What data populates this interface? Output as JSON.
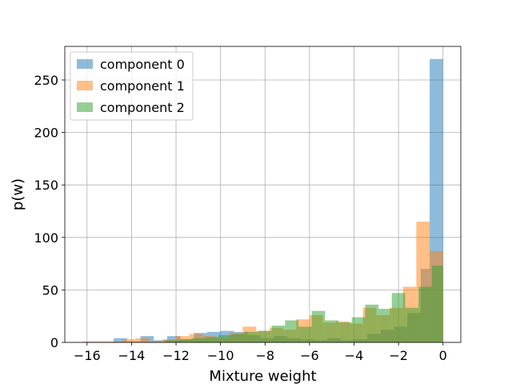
{
  "chart_data": {
    "type": "histogram",
    "xlabel": "Mixture weight",
    "ylabel": "p(w)",
    "xlim": [
      -17,
      0.8
    ],
    "ylim": [
      0,
      282
    ],
    "xticks": [
      -16,
      -14,
      -12,
      -10,
      -8,
      -6,
      -4,
      -2,
      0
    ],
    "xtick_labels": [
      "−16",
      "−14",
      "−12",
      "−10",
      "−8",
      "−6",
      "−4",
      "−2",
      "0"
    ],
    "yticks": [
      0,
      50,
      100,
      150,
      200,
      250
    ],
    "ytick_labels": [
      "0",
      "50",
      "100",
      "150",
      "200",
      "250"
    ],
    "grid": true,
    "legend_position": "top-left",
    "alpha": 0.5,
    "series": [
      {
        "name": "component 0",
        "color": "#1f77b4",
        "bin_edges": [
          -16.0,
          -15.4,
          -14.8,
          -14.2,
          -13.6,
          -13.0,
          -12.4,
          -11.8,
          -11.2,
          -10.6,
          -10.0,
          -9.4,
          -8.8,
          -8.2,
          -7.6,
          -7.0,
          -6.4,
          -5.8,
          -5.2,
          -4.6,
          -4.0,
          -3.4,
          -2.8,
          -2.2,
          -1.6,
          -1.0,
          -0.6,
          0.0
        ],
        "counts": [
          0,
          0,
          4,
          1,
          6,
          2,
          6,
          3,
          9,
          10,
          11,
          10,
          7,
          4,
          6,
          4,
          3,
          2,
          4,
          2,
          3,
          8,
          12,
          15,
          28,
          70,
          270
        ]
      },
      {
        "name": "component 1",
        "color": "#ff7f0e",
        "bin_edges": [
          -16.2,
          -15.6,
          -15.0,
          -14.4,
          -13.8,
          -13.2,
          -12.6,
          -12.0,
          -11.4,
          -10.8,
          -10.2,
          -9.6,
          -9.0,
          -8.4,
          -7.8,
          -7.2,
          -6.6,
          -6.0,
          -5.4,
          -4.8,
          -4.2,
          -3.6,
          -3.0,
          -2.4,
          -1.8,
          -1.2,
          -0.6,
          0.0
        ],
        "counts": [
          1,
          1,
          1,
          3,
          4,
          1,
          3,
          6,
          8,
          6,
          4,
          9,
          15,
          11,
          14,
          12,
          22,
          26,
          19,
          20,
          18,
          33,
          26,
          33,
          53,
          115,
          87
        ]
      },
      {
        "name": "component 2",
        "color": "#2ca02c",
        "bin_edges": [
          -12.5,
          -11.9,
          -11.3,
          -10.7,
          -10.1,
          -9.5,
          -8.9,
          -8.3,
          -7.7,
          -7.1,
          -6.5,
          -5.9,
          -5.3,
          -4.7,
          -4.1,
          -3.5,
          -2.9,
          -2.3,
          -1.7,
          -1.1,
          -0.5,
          0.0
        ],
        "counts": [
          2,
          3,
          4,
          5,
          7,
          8,
          10,
          11,
          16,
          21,
          15,
          30,
          21,
          19,
          24,
          36,
          32,
          47,
          33,
          53,
          73
        ]
      }
    ]
  }
}
